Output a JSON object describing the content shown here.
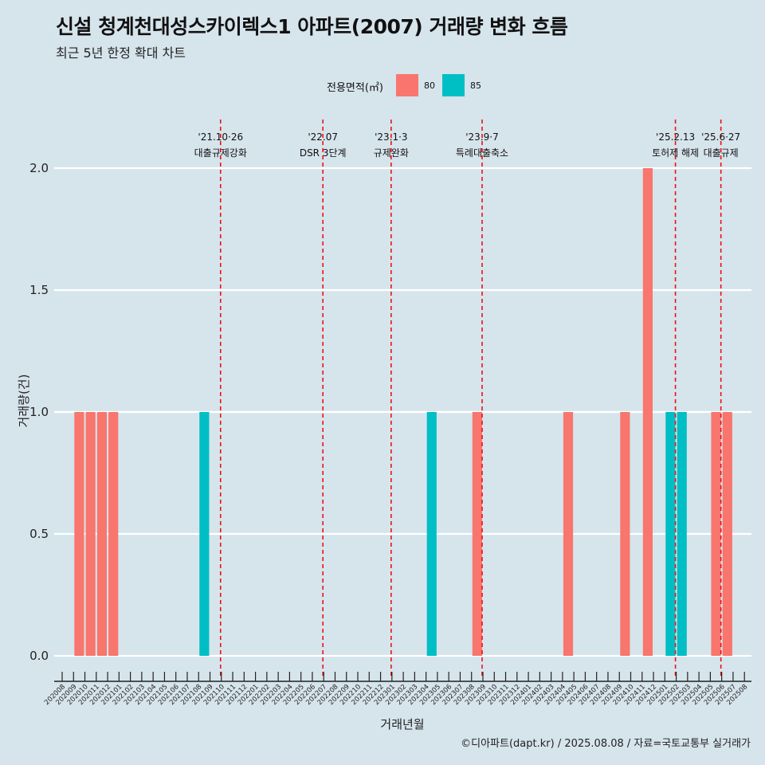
{
  "header": {
    "title": "신설 청계천대성스카이렉스1 아파트(2007) 거래량 변화 흐름",
    "subtitle": "최근 5년 한정 확대 차트"
  },
  "legend": {
    "title": "전용면적(㎡)",
    "items": [
      {
        "label": "80",
        "color": "#F8766D"
      },
      {
        "label": "85",
        "color": "#00BFC4"
      }
    ]
  },
  "caption": "©디아파트(dapt.kr) / 2025.08.08 / 자료=국토교통부 실거래가",
  "chart_data": {
    "type": "bar",
    "title": "신설 청계천대성스카이렉스1 아파트(2007) 거래량 변화 흐름",
    "xlabel": "거래년월",
    "ylabel": "거래량(건)",
    "ylim": [
      0,
      2.0
    ],
    "yticks": [
      0.0,
      0.5,
      1.0,
      1.5,
      2.0
    ],
    "ytick_labels": [
      "0.0",
      "0.5",
      "1.0",
      "1.5",
      "2.0"
    ],
    "grid": true,
    "legend_position": "top",
    "categories": [
      "202008",
      "202009",
      "202010",
      "202011",
      "202012",
      "202101",
      "202102",
      "202103",
      "202104",
      "202105",
      "202106",
      "202107",
      "202108",
      "202109",
      "202110",
      "202111",
      "202112",
      "202201",
      "202202",
      "202203",
      "202204",
      "202205",
      "202206",
      "202207",
      "202208",
      "202209",
      "202210",
      "202211",
      "202212",
      "202301",
      "202302",
      "202303",
      "202304",
      "202305",
      "202306",
      "202307",
      "202308",
      "202309",
      "202310",
      "202311",
      "202312",
      "202401",
      "202402",
      "202403",
      "202404",
      "202405",
      "202406",
      "202407",
      "202408",
      "202409",
      "202410",
      "202411",
      "202412",
      "202501",
      "202502",
      "202503",
      "202504",
      "202505",
      "202506",
      "202507",
      "202508"
    ],
    "bars": [
      {
        "x": "202009",
        "series": "80",
        "value": 1
      },
      {
        "x": "202010",
        "series": "80",
        "value": 1
      },
      {
        "x": "202011",
        "series": "80",
        "value": 1
      },
      {
        "x": "202012",
        "series": "80",
        "value": 1
      },
      {
        "x": "202108",
        "series": "85",
        "value": 1
      },
      {
        "x": "202304",
        "series": "85",
        "value": 1
      },
      {
        "x": "202308",
        "series": "80",
        "value": 1
      },
      {
        "x": "202404",
        "series": "80",
        "value": 1
      },
      {
        "x": "202409",
        "series": "80",
        "value": 1
      },
      {
        "x": "202411",
        "series": "80",
        "value": 2
      },
      {
        "x": "202501",
        "series": "80",
        "value": 1
      },
      {
        "x": "202501",
        "series": "85",
        "value": 1
      },
      {
        "x": "202502",
        "series": "85",
        "value": 1
      },
      {
        "x": "202505",
        "series": "80",
        "value": 1
      },
      {
        "x": "202506",
        "series": "80",
        "value": 1
      }
    ],
    "annotations": [
      {
        "x": "202110",
        "date": "'21.10·26",
        "text": "대출규제강화"
      },
      {
        "x": "202207",
        "date": "'22.07",
        "text": "DSR 3단계"
      },
      {
        "x": "202301",
        "date": "'23.1·3",
        "text": "규제완화"
      },
      {
        "x": "202309",
        "date": "'23.9·7",
        "text": "특례대출축소"
      },
      {
        "x": "202502",
        "date": "'25.2.13",
        "text": "토허제 해제"
      },
      {
        "x": "202506",
        "date": "'25.6·27",
        "text": "대출규제"
      }
    ]
  }
}
